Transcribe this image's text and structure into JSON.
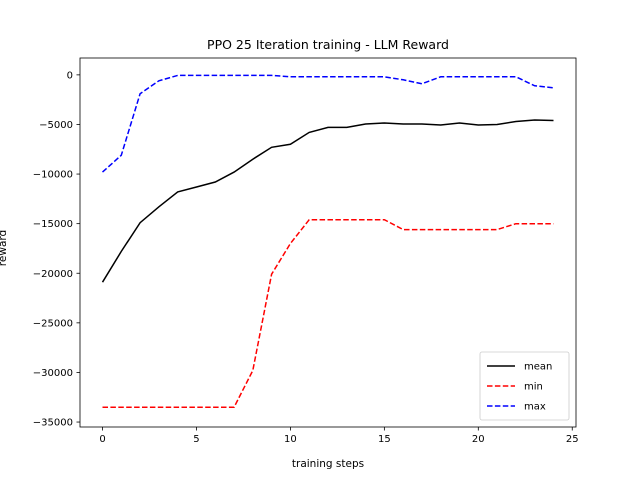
{
  "chart_data": {
    "type": "line",
    "title": "PPO 25 Iteration training - LLM Reward",
    "xlabel": "training steps",
    "ylabel": "reward",
    "xlim": [
      -1.2,
      25.2
    ],
    "ylim": [
      -35500,
      1700
    ],
    "xticks": [
      0,
      5,
      10,
      15,
      20,
      25
    ],
    "yticks": [
      0,
      -5000,
      -10000,
      -15000,
      -20000,
      -25000,
      -30000,
      -35000
    ],
    "grid": false,
    "legend": "lower-right",
    "x": [
      0,
      1,
      2,
      3,
      4,
      5,
      6,
      7,
      8,
      9,
      10,
      11,
      12,
      13,
      14,
      15,
      16,
      17,
      18,
      19,
      20,
      21,
      22,
      23,
      24
    ],
    "series": [
      {
        "name": "mean",
        "color": "#000000",
        "dash": "solid",
        "values": [
          -20900,
          -17800,
          -14900,
          -13300,
          -11800,
          -11300,
          -10800,
          -9800,
          -8500,
          -7300,
          -7000,
          -5800,
          -5300,
          -5300,
          -4950,
          -4850,
          -4950,
          -4950,
          -5050,
          -4850,
          -5050,
          -5000,
          -4700,
          -4550,
          -4600
        ]
      },
      {
        "name": "min",
        "color": "#ff0000",
        "dash": "dashed",
        "values": [
          -33500,
          -33500,
          -33500,
          -33500,
          -33500,
          -33500,
          -33500,
          -33500,
          -29800,
          -20100,
          -17000,
          -14600,
          -14600,
          -14600,
          -14600,
          -14600,
          -15600,
          -15600,
          -15600,
          -15600,
          -15600,
          -15600,
          -15000,
          -15000,
          -15000
        ]
      },
      {
        "name": "max",
        "color": "#0000ff",
        "dash": "dashed",
        "values": [
          -9800,
          -8100,
          -1900,
          -600,
          -50,
          -50,
          -50,
          -50,
          -50,
          -50,
          -200,
          -200,
          -200,
          -200,
          -200,
          -200,
          -500,
          -900,
          -200,
          -200,
          -200,
          -200,
          -200,
          -1100,
          -1300
        ]
      }
    ]
  }
}
